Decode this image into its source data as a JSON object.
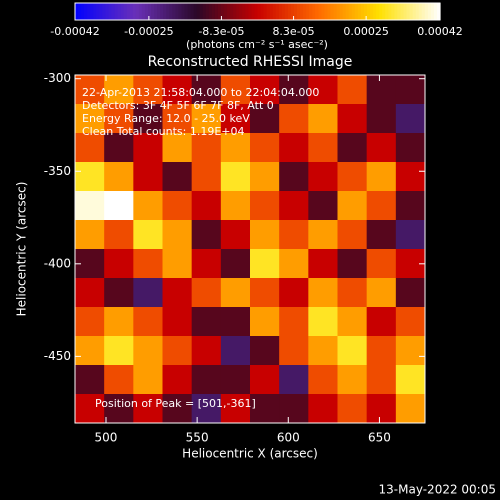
{
  "chart_data": {
    "type": "heatmap",
    "title": "Reconstructed RHESSI Image",
    "x_label": "Heliocentric X (arcsec)",
    "y_label": "Heliocentric Y (arcsec)",
    "colorbar_label": "(photons cm⁻² s⁻¹ asec⁻²)",
    "annotations": [
      "22-Apr-2013 21:58:04.000 to 22:04:04.000",
      "Detectors: 3F 4F 5F 6F 7F 8F, Att 0",
      "Energy Range: 12.0 - 25.0 keV",
      "Clean     Total counts: 1.19E+04"
    ],
    "peak_note": "Position of Peak = [501,-361]",
    "footer": "13-May-2022 00:05",
    "xlim": [
      483,
      675
    ],
    "xticks": [
      500,
      550,
      600,
      650
    ],
    "ylim": [
      -486,
      -298
    ],
    "yticks": [
      -300,
      -350,
      -400,
      -450
    ],
    "clim": [
      -0.00042,
      0.00042
    ],
    "cticks": [
      -0.00042,
      -0.00025,
      {
        "value": -8.3e-05,
        "label": "-8.3e-05"
      },
      {
        "value": 8.3e-05,
        "label": "8.3e-05"
      },
      0.00025,
      0.00042
    ],
    "colors": [
      "#0000ff",
      "#6a30b8",
      "#2a0828",
      "#c80000",
      "#ff6a00",
      "#ffe000",
      "#ffffff"
    ],
    "z": [
      [
        0.0001,
        0.0002,
        0.0001,
        0,
        -0.0001,
        0.0001,
        0,
        -0.0001,
        0,
        0.0001,
        -0.0001,
        -0.0001
      ],
      [
        0.0002,
        0.0001,
        -0.0001,
        0.0001,
        0.0002,
        0,
        -0.0001,
        0.0001,
        0.0002,
        0,
        -0.0001,
        -0.0002
      ],
      [
        0.0001,
        -0.0001,
        0,
        0.0002,
        0.0001,
        0.0002,
        0.0001,
        0,
        0.0001,
        -0.0001,
        0,
        -0.0001
      ],
      [
        0.0003,
        0.0002,
        0,
        -0.0001,
        0.0001,
        0.0003,
        0.0002,
        -0.0001,
        0,
        0.0001,
        0.0002,
        0
      ],
      [
        0.0004,
        0.00042,
        0.0002,
        0.0001,
        0,
        0.0002,
        0.0001,
        0,
        -0.0001,
        0.0002,
        0.0001,
        -0.0001
      ],
      [
        0.0002,
        0.0001,
        0.0003,
        0.0002,
        -0.0001,
        0,
        0.0002,
        0.0001,
        0.0002,
        0.0001,
        -0.0001,
        -0.0002
      ],
      [
        -0.0001,
        0,
        0.0001,
        0.0002,
        0,
        -0.0001,
        0.0003,
        0.0002,
        0,
        -0.0001,
        0.0001,
        0
      ],
      [
        0,
        -0.0001,
        -0.0002,
        0,
        0.0001,
        0.0002,
        0.0001,
        0,
        0.0002,
        0.0001,
        0.0002,
        -0.0001
      ],
      [
        0.0001,
        0.0002,
        0.0001,
        0,
        -0.0001,
        -0.0001,
        0.0002,
        0.0001,
        0.0003,
        0.0002,
        0,
        0.0001
      ],
      [
        0.0002,
        0.0003,
        0.0002,
        0.0001,
        0,
        -0.0002,
        -0.0001,
        0.0001,
        0.0002,
        0.0003,
        0.0001,
        0.0002
      ],
      [
        -0.0001,
        0.0001,
        0.0002,
        0,
        -0.0001,
        -0.0001,
        0,
        -0.0002,
        0.0001,
        0.0002,
        0.0001,
        0.0003
      ],
      [
        0,
        -0.0001,
        0,
        -0.0001,
        -0.0002,
        0,
        -0.0001,
        -0.0001,
        0,
        0.0001,
        0,
        0.0002
      ]
    ]
  }
}
